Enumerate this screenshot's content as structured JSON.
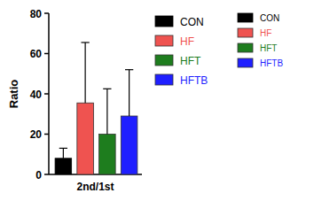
{
  "chart_data": {
    "type": "bar",
    "y_label": "Ratio",
    "categories": [
      "2nd/1st"
    ],
    "series": [
      {
        "name": "CON",
        "color": "#000000",
        "values": [
          8
        ],
        "errors": [
          5
        ]
      },
      {
        "name": "HF",
        "color": "#ef5350",
        "values": [
          35.5
        ],
        "errors": [
          30
        ]
      },
      {
        "name": "HFT",
        "color": "#1e7d1e",
        "values": [
          20
        ],
        "errors": [
          22.5
        ]
      },
      {
        "name": "HFTB",
        "color": "#1f1fff",
        "values": [
          29
        ],
        "errors": [
          23
        ]
      }
    ],
    "ylim": [
      0,
      80
    ],
    "yticks": [
      0,
      20,
      40,
      60,
      80
    ],
    "grid": false,
    "legend": "right"
  }
}
